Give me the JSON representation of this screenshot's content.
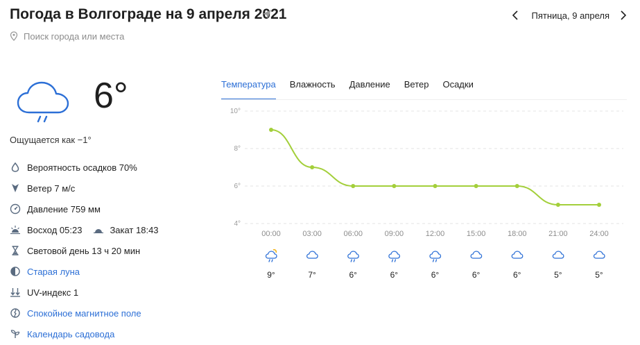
{
  "header": {
    "title": "Погода в Волгограде на 9 апреля 2021",
    "search_placeholder": "Поиск города или места",
    "date": "Пятница, 9 апреля"
  },
  "current": {
    "temperature": "6°",
    "condition_icon": "cloud-rain-icon",
    "feels_like": "Ощущается как −1°"
  },
  "details": {
    "precipitation": "Вероятность осадков 70%",
    "wind": "Ветер 7 м/с",
    "pressure": "Давление 759 мм",
    "sunrise": "Восход 05:23",
    "sunset": "Закат 18:43",
    "daylight": "Световой день 13 ч 20 мин",
    "moon": "Старая луна",
    "uv": "UV-индекс 1",
    "magnetic": "Спокойное магнитное поле",
    "garden": "Календарь садовода"
  },
  "tabs": [
    "Температура",
    "Влажность",
    "Давление",
    "Ветер",
    "Осадки"
  ],
  "active_tab": 0,
  "colors": {
    "accent": "#2c6fd6",
    "line": "#a3cf3a",
    "icon": "#2c6fd6",
    "muted": "#9a9a9a"
  },
  "chart_data": {
    "type": "line",
    "x": [
      "00:00",
      "03:00",
      "06:00",
      "09:00",
      "12:00",
      "15:00",
      "18:00",
      "21:00",
      "24:00"
    ],
    "values": [
      9,
      7,
      6,
      6,
      6,
      6,
      6,
      5,
      5
    ],
    "value_labels": [
      "9°",
      "7°",
      "6°",
      "6°",
      "6°",
      "6°",
      "6°",
      "5°",
      "5°"
    ],
    "icons": [
      "cloud-sun-rain-icon",
      "cloud-icon",
      "cloud-rain-icon",
      "cloud-rain-icon",
      "cloud-rain-icon",
      "cloud-icon",
      "cloud-icon",
      "cloud-icon",
      "cloud-icon"
    ],
    "yticks": [
      "4°",
      "6°",
      "8°",
      "10°"
    ],
    "ytick_values": [
      4,
      6,
      8,
      10
    ],
    "ylim": [
      4,
      10
    ],
    "grid": true
  }
}
